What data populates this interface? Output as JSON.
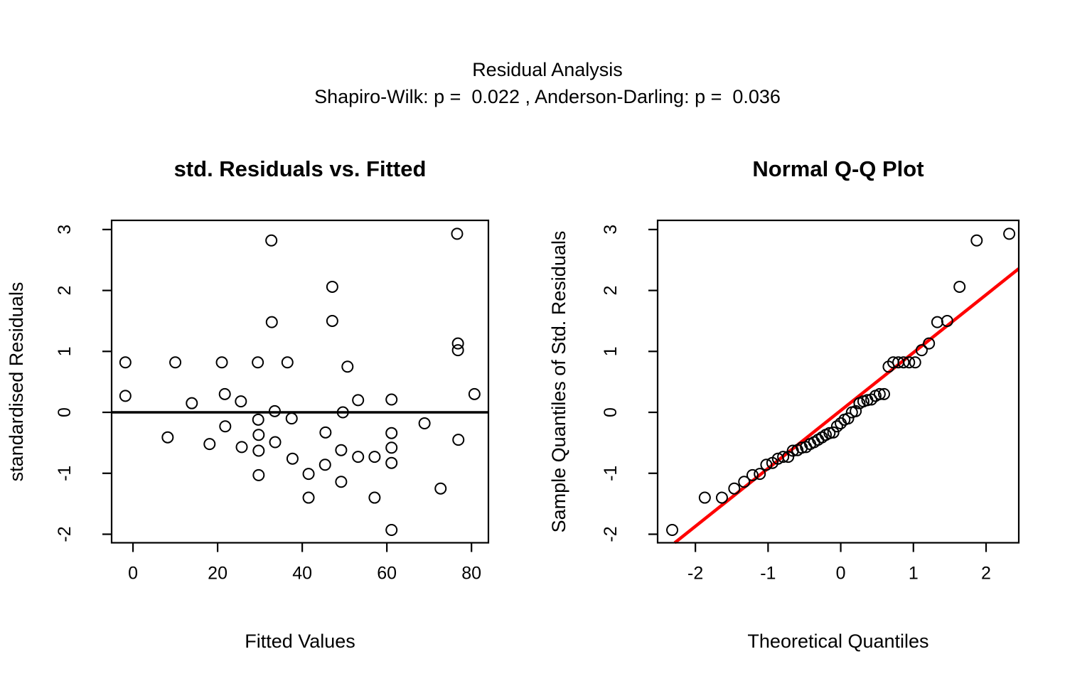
{
  "figure": {
    "main_title": "Residual Analysis",
    "subtitle": "Shapiro-Wilk: p =  0.022 , Anderson-Darling: p =  0.036",
    "tests": {
      "shapiro_wilk_p": 0.022,
      "anderson_darling_p": 0.036
    }
  },
  "chart_data": [
    {
      "type": "scatter",
      "title": "std. Residuals vs. Fitted",
      "xlabel": "Fitted Values",
      "ylabel": "standardised Residuals",
      "xlim": [
        -5.05,
        84.0
      ],
      "ylim": [
        -2.14,
        3.15
      ],
      "xticks": [
        0,
        20,
        40,
        60,
        80
      ],
      "yticks": [
        -2,
        -1,
        0,
        1,
        2,
        3
      ],
      "grid": false,
      "marker": "open-circle",
      "ref_hline": {
        "y": 0,
        "color": "#000000"
      },
      "points": [
        [
          -1.8,
          0.82
        ],
        [
          10.0,
          0.82
        ],
        [
          21.0,
          0.82
        ],
        [
          29.5,
          0.82
        ],
        [
          36.5,
          0.82
        ],
        [
          50.7,
          0.75
        ],
        [
          -1.8,
          0.27
        ],
        [
          13.9,
          0.15
        ],
        [
          21.7,
          0.3
        ],
        [
          25.5,
          0.18
        ],
        [
          33.5,
          0.02
        ],
        [
          49.6,
          0.0
        ],
        [
          53.2,
          0.2
        ],
        [
          61.1,
          0.21
        ],
        [
          80.7,
          0.3
        ],
        [
          32.7,
          2.82
        ],
        [
          76.6,
          2.93
        ],
        [
          47.1,
          2.06
        ],
        [
          32.8,
          1.48
        ],
        [
          47.1,
          1.5
        ],
        [
          76.8,
          1.13
        ],
        [
          76.8,
          1.02
        ],
        [
          29.6,
          -0.12
        ],
        [
          37.5,
          -0.1
        ],
        [
          21.8,
          -0.23
        ],
        [
          8.2,
          -0.41
        ],
        [
          18.1,
          -0.52
        ],
        [
          29.7,
          -0.37
        ],
        [
          25.7,
          -0.57
        ],
        [
          29.7,
          -0.63
        ],
        [
          33.6,
          -0.49
        ],
        [
          37.7,
          -0.76
        ],
        [
          45.5,
          -0.33
        ],
        [
          41.5,
          -1.01
        ],
        [
          45.4,
          -0.86
        ],
        [
          49.2,
          -0.62
        ],
        [
          53.2,
          -0.73
        ],
        [
          57.1,
          -0.73
        ],
        [
          61.1,
          -0.34
        ],
        [
          61.1,
          -0.58
        ],
        [
          61.1,
          -0.83
        ],
        [
          68.9,
          -0.18
        ],
        [
          72.7,
          -1.25
        ],
        [
          76.9,
          -0.45
        ],
        [
          41.5,
          -1.4
        ],
        [
          49.2,
          -1.14
        ],
        [
          57.1,
          -1.4
        ],
        [
          29.7,
          -1.03
        ],
        [
          61.1,
          -1.93
        ]
      ]
    },
    {
      "type": "scatter",
      "title": "Normal Q-Q Plot",
      "xlabel": "Theoretical Quantiles",
      "ylabel": "Sample Quantiles of Std. Residuals",
      "xlim": [
        -2.52,
        2.45
      ],
      "ylim": [
        -2.14,
        3.15
      ],
      "xticks": [
        -2,
        -1,
        0,
        1,
        2
      ],
      "yticks": [
        -2,
        -1,
        0,
        1,
        2,
        3
      ],
      "grid": false,
      "marker": "open-circle",
      "qq_line": {
        "intercept": 0.03,
        "slope": 0.95,
        "color": "#FF0000"
      },
      "points": [
        [
          -2.319,
          -1.93
        ],
        [
          -1.871,
          -1.4
        ],
        [
          -1.635,
          -1.4
        ],
        [
          -1.465,
          -1.25
        ],
        [
          -1.329,
          -1.14
        ],
        [
          -1.214,
          -1.03
        ],
        [
          -1.114,
          -1.01
        ],
        [
          -1.024,
          -0.86
        ],
        [
          -0.941,
          -0.83
        ],
        [
          -0.864,
          -0.76
        ],
        [
          -0.792,
          -0.73
        ],
        [
          -0.723,
          -0.73
        ],
        [
          -0.659,
          -0.63
        ],
        [
          -0.596,
          -0.62
        ],
        [
          -0.536,
          -0.58
        ],
        [
          -0.478,
          -0.57
        ],
        [
          -0.421,
          -0.52
        ],
        [
          -0.366,
          -0.49
        ],
        [
          -0.312,
          -0.45
        ],
        [
          -0.258,
          -0.41
        ],
        [
          -0.206,
          -0.37
        ],
        [
          -0.154,
          -0.34
        ],
        [
          -0.102,
          -0.33
        ],
        [
          -0.051,
          -0.23
        ],
        [
          0.0,
          -0.18
        ],
        [
          0.051,
          -0.12
        ],
        [
          0.102,
          -0.1
        ],
        [
          0.154,
          0.0
        ],
        [
          0.206,
          0.02
        ],
        [
          0.258,
          0.15
        ],
        [
          0.312,
          0.18
        ],
        [
          0.366,
          0.2
        ],
        [
          0.421,
          0.21
        ],
        [
          0.478,
          0.27
        ],
        [
          0.536,
          0.3
        ],
        [
          0.596,
          0.3
        ],
        [
          0.659,
          0.75
        ],
        [
          0.723,
          0.82
        ],
        [
          0.792,
          0.82
        ],
        [
          0.864,
          0.82
        ],
        [
          0.941,
          0.82
        ],
        [
          1.024,
          0.82
        ],
        [
          1.114,
          1.02
        ],
        [
          1.214,
          1.13
        ],
        [
          1.329,
          1.48
        ],
        [
          1.465,
          1.5
        ],
        [
          1.635,
          2.06
        ],
        [
          1.871,
          2.82
        ],
        [
          2.319,
          2.93
        ]
      ]
    }
  ]
}
